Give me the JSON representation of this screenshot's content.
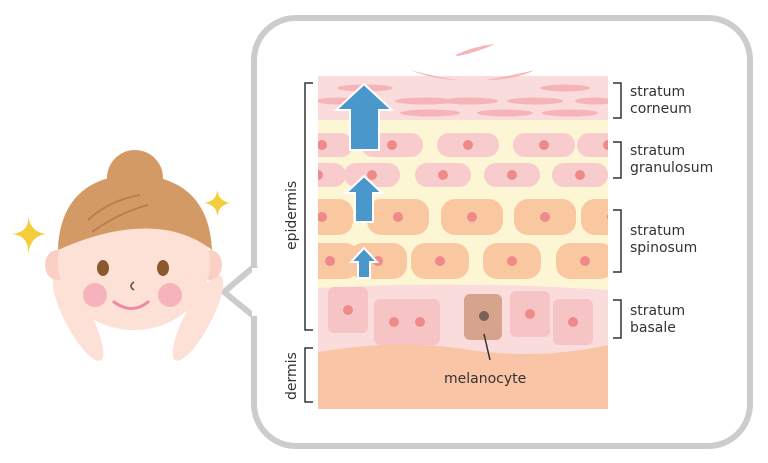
{
  "labels": {
    "epidermis": "epidermis",
    "dermis": "dermis",
    "melanocyte": "melanocyte",
    "corneum_1": "stratum",
    "corneum_2": "corneum",
    "granulosum_1": "stratum",
    "granulosum_2": "granulosum",
    "spinosum_1": "stratum",
    "spinosum_2": "spinosum",
    "basale_1": "stratum",
    "basale_2": "basale"
  },
  "colors": {
    "corneum": "#fbdcdc",
    "granular_bg": "#fdf6d4",
    "granular_cell": "#f8cccc",
    "spinous_cell": "#f9c7a0",
    "basal_bg": "#fbdcdc",
    "basal_cell": "#f6c4c4",
    "nucleus": "#ee8a8a",
    "melanocyte": "#d6a48c",
    "dermis": "#f9c5a6",
    "arrow": "#4a97cc",
    "bubble_border": "#cccccc",
    "hair": "#d49a66",
    "skin": "#fde0d6",
    "sparkle": "#f5cc3a"
  },
  "icons": [
    "sparkle-icon",
    "up-arrow-icon"
  ]
}
